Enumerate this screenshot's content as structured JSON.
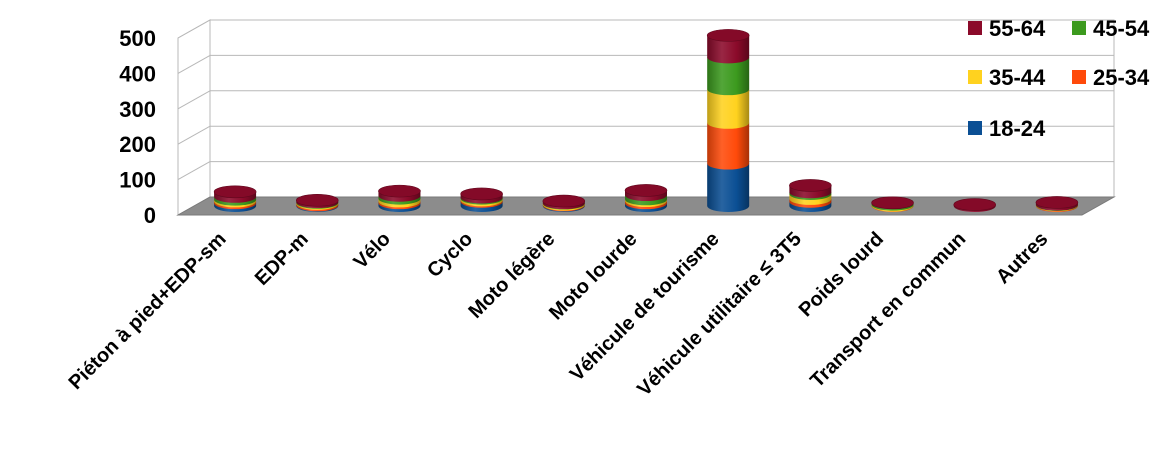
{
  "chart_data": {
    "type": "bar",
    "stacked": true,
    "style": "3d-cylinder",
    "categories": [
      "Piéton à pied+EDP-sm",
      "EDP-m",
      "Vélo",
      "Cyclo",
      "Moto légère",
      "Moto lourde",
      "Véhicule de tourisme",
      "Véhicule utilitaire ≤ 3T5",
      "Poids lourd",
      "Transport en commun",
      "Autres"
    ],
    "series": [
      {
        "name": "18-24",
        "color": "#0B4F94",
        "values": [
          8,
          2,
          8,
          12,
          2,
          8,
          120,
          12,
          0,
          0,
          0
        ]
      },
      {
        "name": "25-34",
        "color": "#FF4A0A",
        "values": [
          5,
          4,
          5,
          4,
          2,
          6,
          115,
          8,
          1,
          0,
          2
        ]
      },
      {
        "name": "35-44",
        "color": "#FFD21F",
        "values": [
          5,
          3,
          8,
          5,
          3,
          5,
          95,
          14,
          3,
          0,
          1
        ]
      },
      {
        "name": "45-54",
        "color": "#3C9A1E",
        "values": [
          8,
          2,
          8,
          3,
          1,
          12,
          90,
          5,
          4,
          0,
          1
        ]
      },
      {
        "name": "55-64",
        "color": "#8B0A2A",
        "values": [
          14,
          5,
          13,
          10,
          6,
          13,
          62,
          19,
          1,
          4,
          6
        ]
      }
    ],
    "yticks": [
      "0",
      "100",
      "200",
      "300",
      "400",
      "500"
    ],
    "ylim": [
      0,
      500
    ],
    "grid": true,
    "legend_position": "top-right",
    "legend_order": [
      "55-64",
      "45-54",
      "35-44",
      "25-34",
      "18-24"
    ]
  }
}
